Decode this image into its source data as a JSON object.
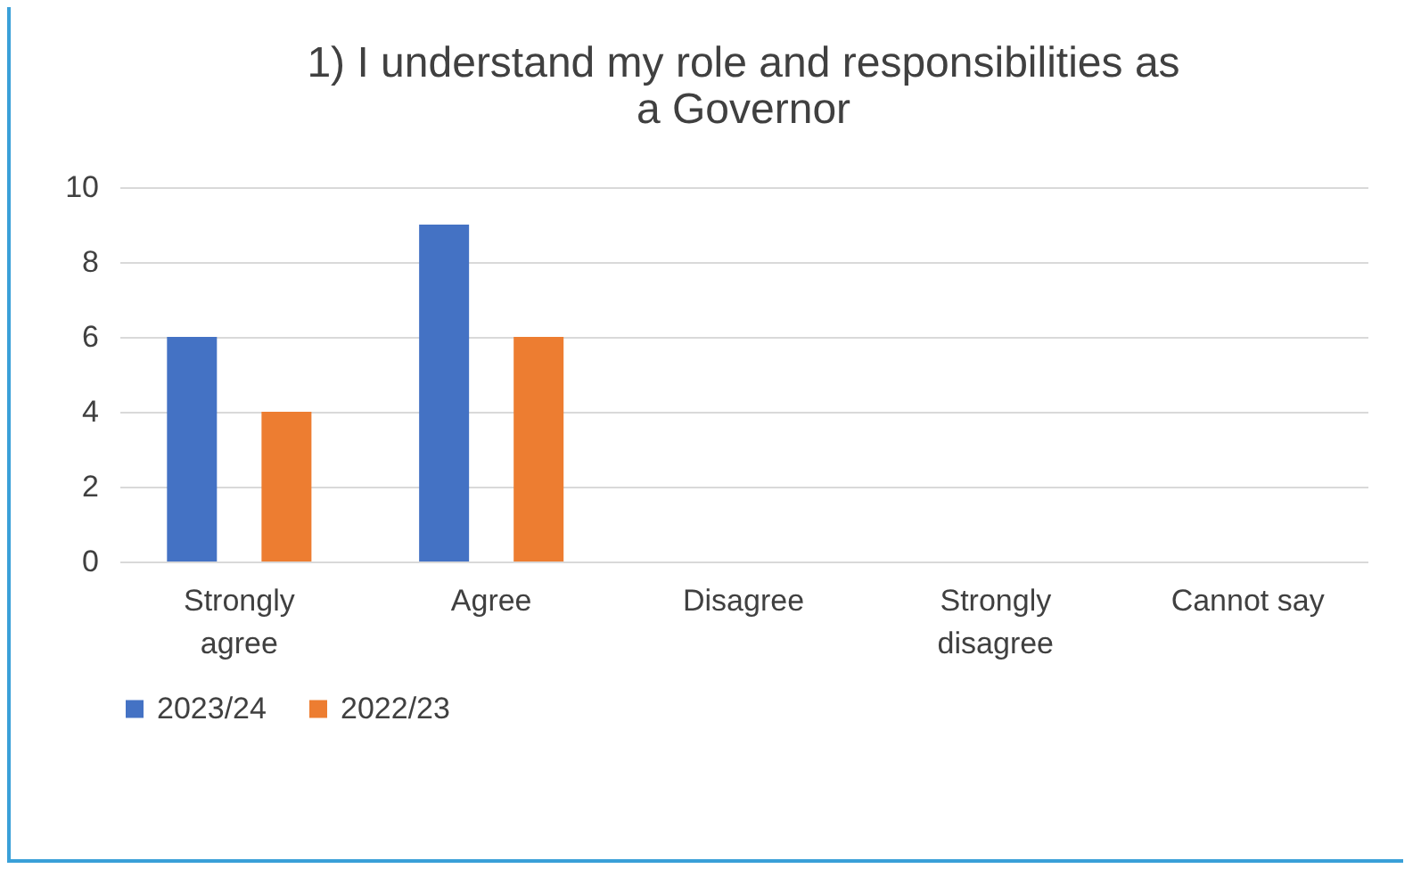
{
  "chart_data": {
    "type": "bar",
    "title": "1) I understand my role and responsibilities as a Governor",
    "categories": [
      "Strongly agree",
      "Agree",
      "Disagree",
      "Strongly disagree",
      "Cannot say"
    ],
    "series": [
      {
        "name": "2023/24",
        "color": "#4472c4",
        "values": [
          6,
          9,
          0,
          0,
          0
        ]
      },
      {
        "name": "2022/23",
        "color": "#ed7d31",
        "values": [
          4,
          6,
          0,
          0,
          0
        ]
      }
    ],
    "ylim": [
      0,
      10
    ],
    "yticks": [
      0,
      2,
      4,
      6,
      8,
      10
    ],
    "grid": "y",
    "legend": "bottom"
  }
}
